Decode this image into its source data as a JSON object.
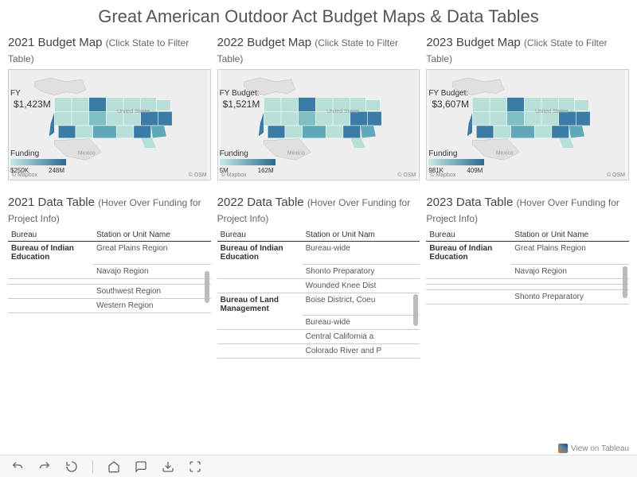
{
  "title": "Great American Outdoor Act Budget Maps & Data Tables",
  "maps": [
    {
      "year": "2021",
      "title": "2021 Budget Map",
      "sub": "(Click State to Filter Table)",
      "fy_label": "FY",
      "fy_value": "$1,423M",
      "legend_label": "Funding",
      "legend_min": "$250K",
      "legend_max": "248M"
    },
    {
      "year": "2022",
      "title": "2022 Budget Map",
      "sub": "(Click State to Filter Table)",
      "fy_label": "FY Budget:",
      "fy_value": "$1,521M",
      "legend_label": "Funding",
      "legend_min": "5M",
      "legend_max": "162M"
    },
    {
      "year": "2023",
      "title": "2023 Budget Map",
      "sub": "(Click State to Filter Table)",
      "fy_label": "FY Budget:",
      "fy_value": "$3,607M",
      "legend_label": "Funding",
      "legend_min": "981K",
      "legend_max": "409M"
    }
  ],
  "legend_colors": {
    "start": "#c7e9e5",
    "end": "#2b6a8e"
  },
  "map_bg": "#eeeeee",
  "land_color": "#e0e0e0",
  "state_light": "#b8e0d8",
  "state_dark": "#3a7ca5",
  "tables": [
    {
      "title": "2021 Data Table",
      "sub": "(Hover Over Funding for Project Info)",
      "col1": "Bureau",
      "col2": "Station or Unit Name",
      "rows": [
        {
          "bureau": "Bureau of Indian Education",
          "station": "Great Plains Region"
        },
        {
          "bureau": "",
          "station": "Navajo Region"
        },
        {
          "bureau": "",
          "station": ""
        },
        {
          "bureau": "",
          "station": "Southwest Region"
        },
        {
          "bureau": "",
          "station": "Western Region"
        }
      ]
    },
    {
      "title": "2022 Data Table",
      "sub": "(Hover Over Funding for Project Info)",
      "col1": "Bureau",
      "col2": "Station or Unit Nam",
      "rows": [
        {
          "bureau": "Bureau of Indian Education",
          "station": "Bureau-wide"
        },
        {
          "bureau": "",
          "station": "Shonto Preparatory"
        },
        {
          "bureau": "",
          "station": "Wounded Knee Dist"
        },
        {
          "bureau": "Bureau of Land Management",
          "station": "Boise District, Coeu"
        },
        {
          "bureau": "",
          "station": "Bureau-wide"
        },
        {
          "bureau": "",
          "station": "Central California a"
        },
        {
          "bureau": "",
          "station": "Colorado River and P"
        }
      ]
    },
    {
      "title": "2023 Data Table",
      "sub": "(Hover Over Funding for Project Info)",
      "col1": "Bureau",
      "col2": "Station or Unit Name",
      "rows": [
        {
          "bureau": "Bureau of Indian Education",
          "station": "Great Plains Region"
        },
        {
          "bureau": "",
          "station": "Navajo Region"
        },
        {
          "bureau": "",
          "station": ""
        },
        {
          "bureau": "",
          "station": ""
        },
        {
          "bureau": "",
          "station": "Shonto Preparatory"
        }
      ]
    }
  ],
  "attrib_left": "© Mapbox",
  "attrib_right": "© OSM",
  "view_tableau": "View on Tableau",
  "map_label_us": "United States",
  "map_label_mx": "Mexico"
}
